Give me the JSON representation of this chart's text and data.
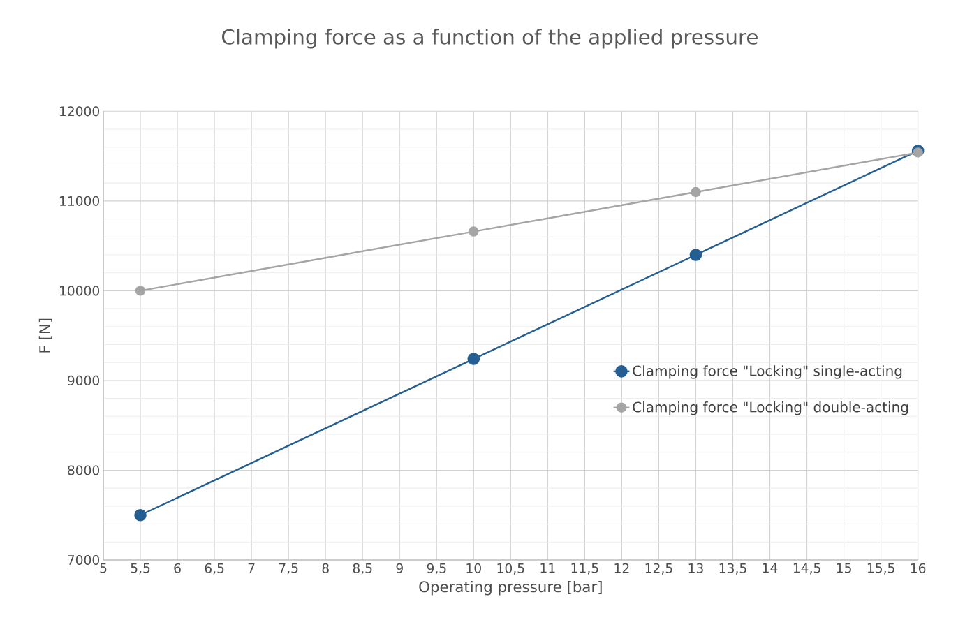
{
  "chart_data": {
    "type": "line",
    "title": "Clamping force as a function of the applied pressure",
    "xlabel": "Operating pressure [bar]",
    "ylabel": "F [N]",
    "x": [
      5.5,
      10,
      13,
      16
    ],
    "series": [
      {
        "name": "Clamping force \"Locking\" single-acting",
        "color": "#255e91",
        "values": [
          7500,
          9240,
          10400,
          11560
        ]
      },
      {
        "name": "Clamping force \"Locking\" double-acting",
        "color": "#a5a5a5",
        "values": [
          10000,
          10660,
          11100,
          11540
        ]
      }
    ],
    "xlim": [
      5,
      16
    ],
    "ylim": [
      7000,
      12000
    ],
    "xticks": [
      5,
      {
        "value": 5.5,
        "label": "5,5"
      },
      6,
      {
        "value": 6.5,
        "label": "6,5"
      },
      7,
      {
        "value": 7.5,
        "label": "7,5"
      },
      8,
      {
        "value": 8.5,
        "label": "8,5"
      },
      9,
      {
        "value": 9.5,
        "label": "9,5"
      },
      10,
      {
        "value": 10.5,
        "label": "10,5"
      },
      11,
      {
        "value": 11.5,
        "label": "11,5"
      },
      12,
      {
        "value": 12.5,
        "label": "12,5"
      },
      13,
      {
        "value": 13.5,
        "label": "13,5"
      },
      14,
      {
        "value": 14.5,
        "label": "14,5"
      },
      15,
      {
        "value": 15.5,
        "label": "15,5"
      },
      16
    ],
    "yticks": [
      7000,
      8000,
      9000,
      10000,
      11000,
      12000
    ],
    "grid": true,
    "legend": "right",
    "marker": "circle",
    "line_style": "solid"
  }
}
